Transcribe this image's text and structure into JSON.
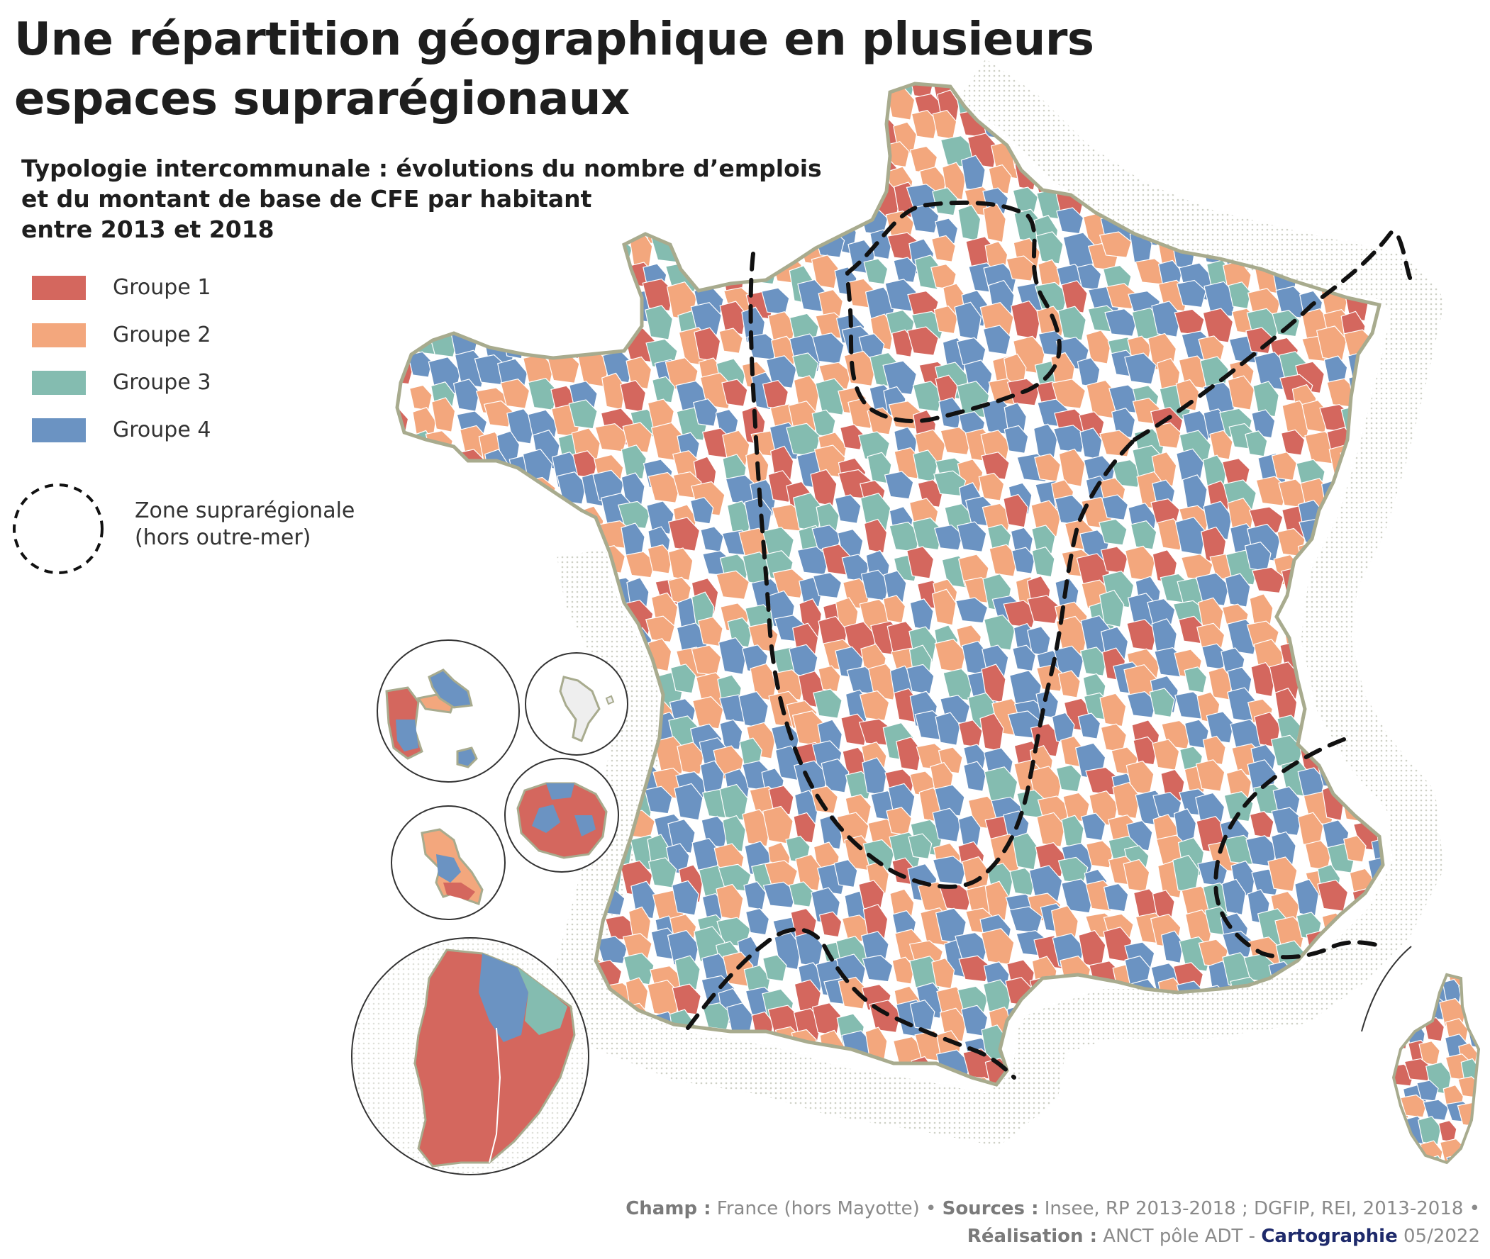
{
  "title": "Une répartition géographique en plusieurs espaces suprarégionaux",
  "subtitle": {
    "line1": "Typologie intercommunale : évolutions du nombre d’emplois",
    "line2": "et du montant de base de CFE par habitant",
    "line3": "entre 2013 et 2018"
  },
  "legend": {
    "items": [
      {
        "label": "Groupe 1",
        "color": "#d4675e"
      },
      {
        "label": "Groupe 2",
        "color": "#f3a77d"
      },
      {
        "label": "Groupe 3",
        "color": "#84bcb0"
      },
      {
        "label": "Groupe 4",
        "color": "#6b93c2"
      }
    ],
    "zone_label_line1": "Zone suprarégionale",
    "zone_label_line2": "(hors outre-mer)"
  },
  "map_colors": {
    "groupe1": "#d4675e",
    "groupe2": "#f3a77d",
    "groupe3": "#84bcb0",
    "groupe4": "#6b93c2",
    "border": "#a8ab8e",
    "no_data": "#eeeeee"
  },
  "footer": {
    "champ_label": "Champ :",
    "champ_value": "France (hors Mayotte)",
    "sources_label": "Sources :",
    "sources_value": "Insee, RP 2013-2018 ; DGFIP, REI, 2013-2018",
    "realisation_label": "Réalisation :",
    "realisation_value": "ANCT pôle ADT -",
    "cartographie_label": "Cartographie",
    "date": "05/2022"
  }
}
